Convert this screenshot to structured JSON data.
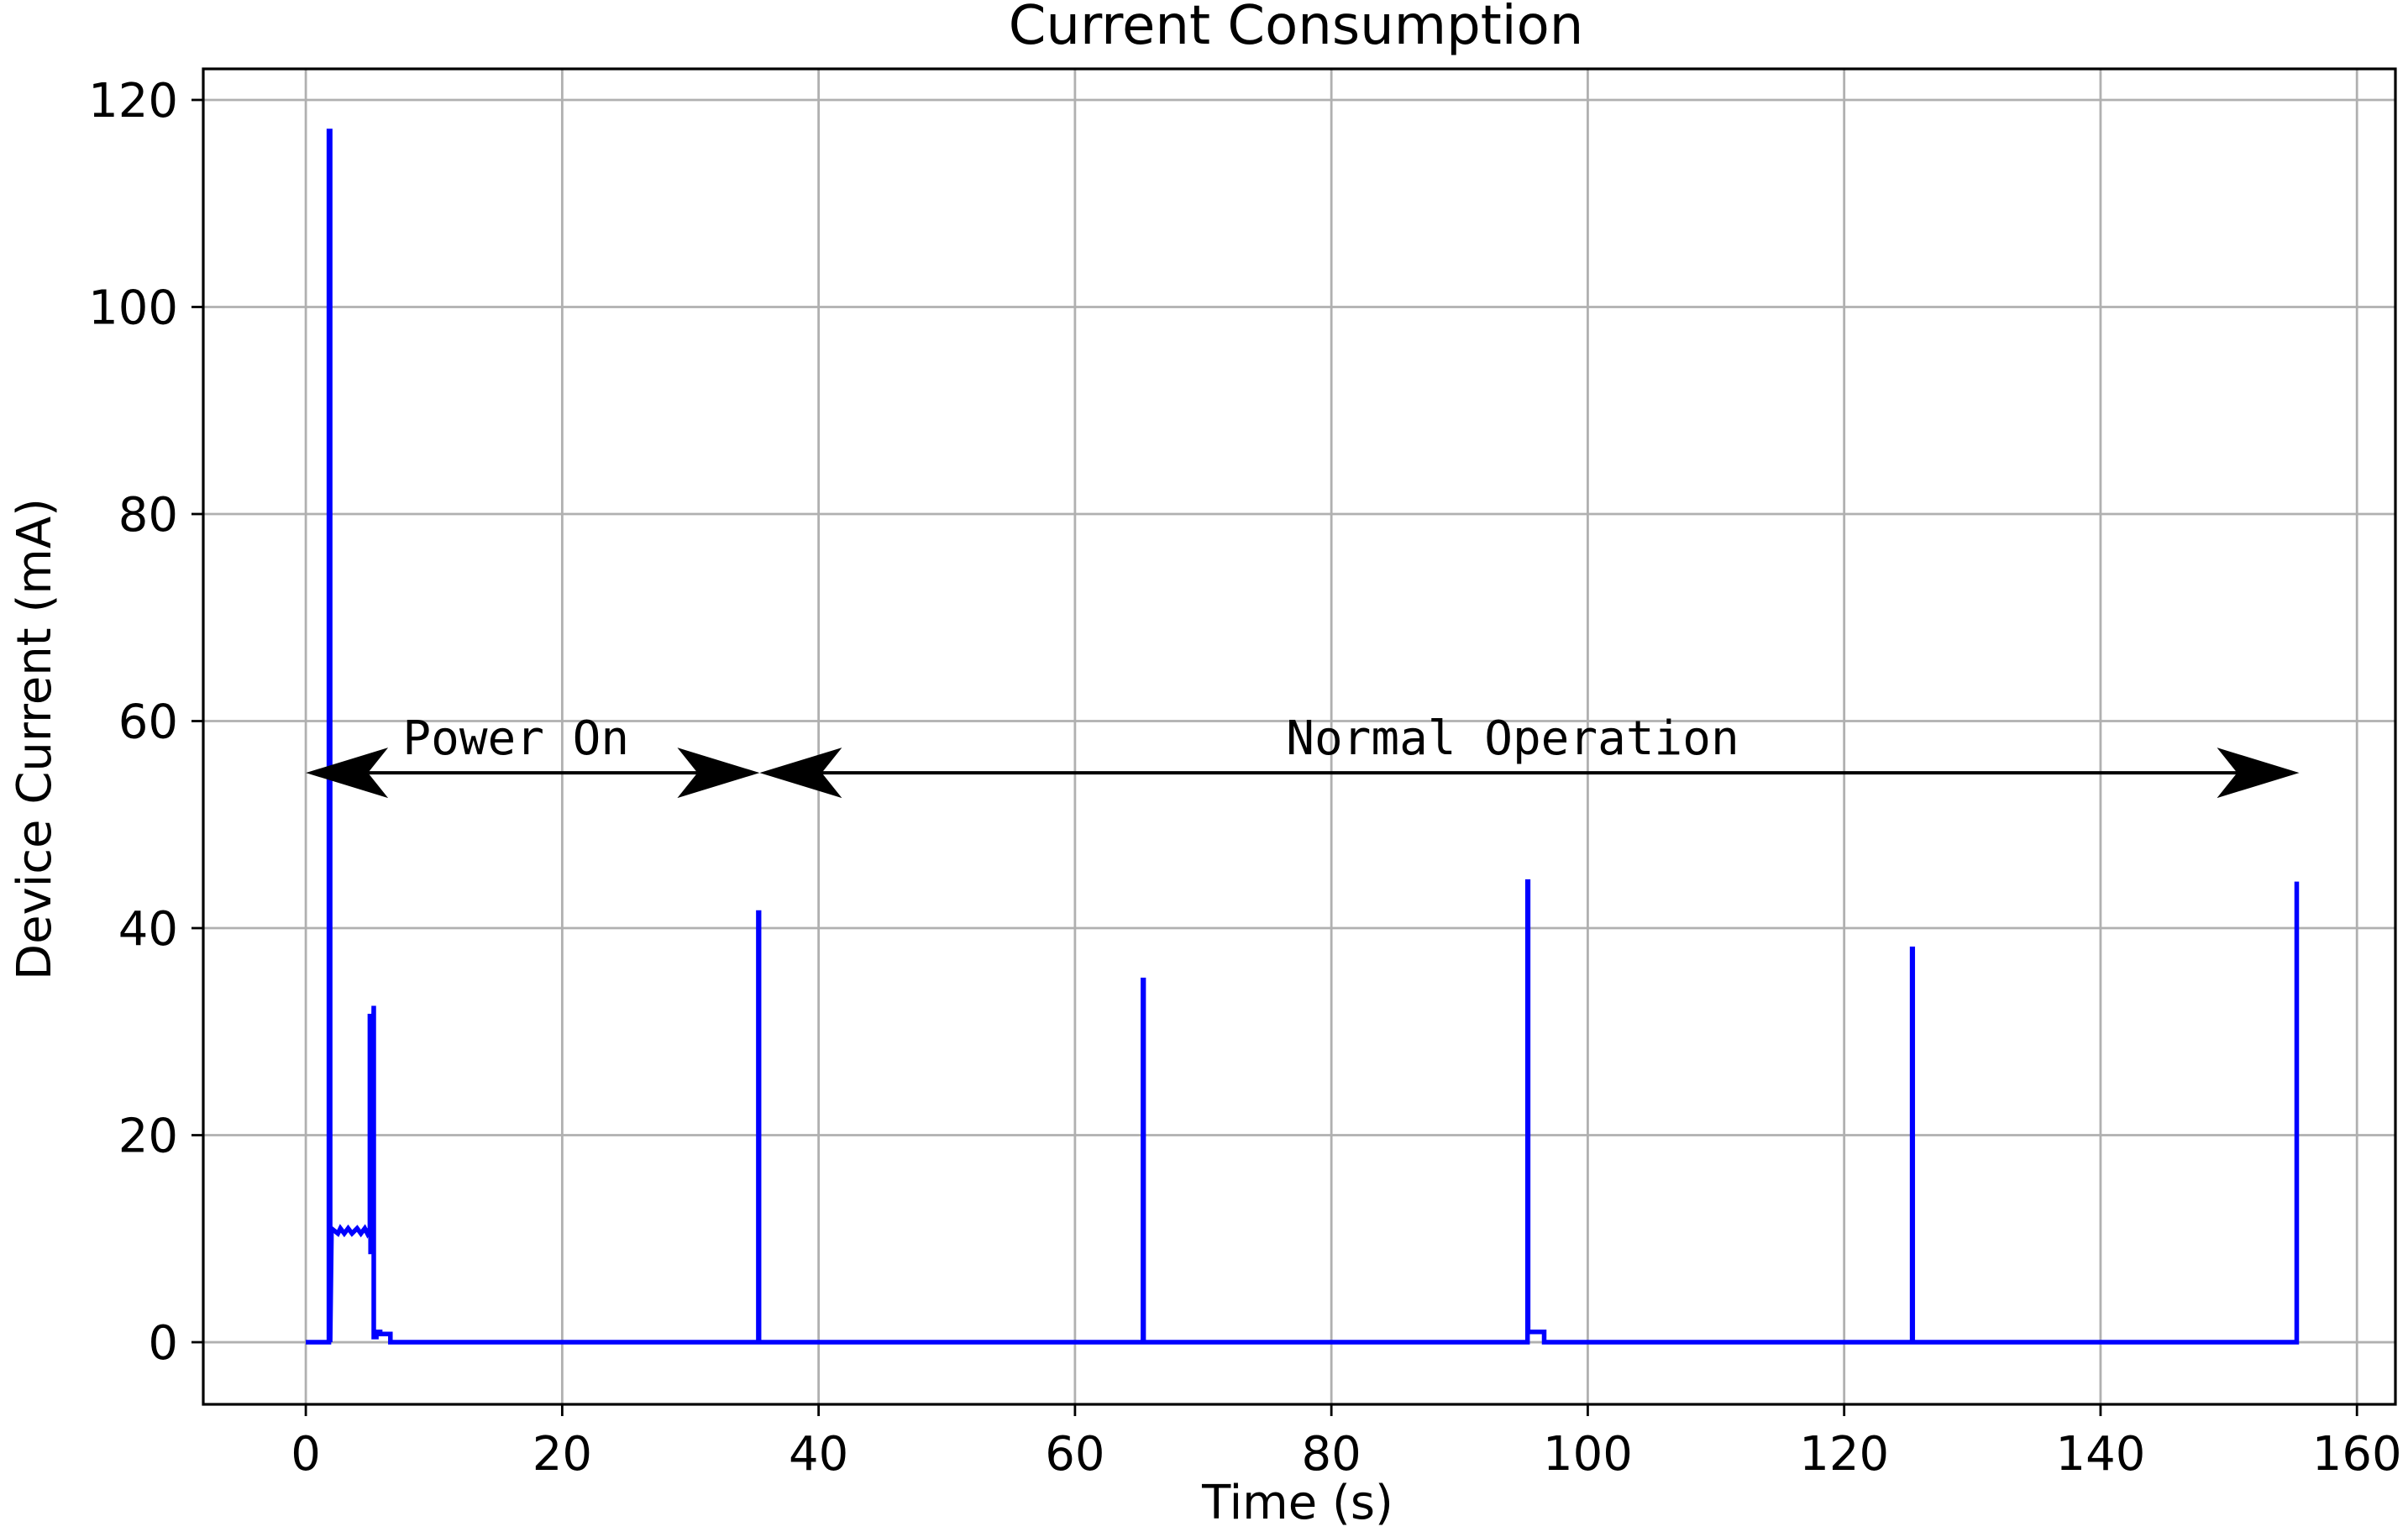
{
  "chart_data": {
    "type": "line",
    "title": "Current Consumption",
    "xlabel": "Time (s)",
    "ylabel": "Device Current  (mA)",
    "xlim": [
      -8,
      163
    ],
    "ylim": [
      -6,
      123
    ],
    "xticks": [
      0,
      20,
      40,
      60,
      80,
      100,
      120,
      140,
      160
    ],
    "yticks": [
      0,
      20,
      40,
      60,
      80,
      100,
      120
    ],
    "grid": true,
    "line_color": "#0000ff",
    "series": [
      {
        "x": [
          0,
          1.8,
          1.8,
          1.9,
          1.9,
          2.0,
          2.0,
          2.5,
          2.7,
          3.0,
          3.3,
          3.6,
          4.0,
          4.3,
          4.6,
          4.8,
          5.0,
          5.0,
          5.05,
          5.05,
          5.3,
          5.3,
          5.5,
          5.5,
          5.8,
          5.8,
          6.6,
          6.6,
          35.3,
          35.3,
          35.35,
          35.35,
          65.3,
          65.3,
          65.35,
          65.35,
          95.3,
          95.3,
          95.35,
          95.35,
          96.6,
          96.6,
          125.3,
          125.3,
          125.35,
          125.35,
          155.3,
          155.3
        ],
        "y": [
          0,
          0,
          117,
          117,
          0,
          10,
          11,
          10.5,
          11,
          10.5,
          11,
          10.5,
          11,
          10.5,
          11,
          10.5,
          11,
          31.5,
          31.5,
          8.5,
          32.5,
          0.5,
          0.5,
          1,
          1,
          0.8,
          0.8,
          0,
          0,
          41.5,
          41.5,
          0,
          0,
          35,
          35,
          0,
          0,
          44.5,
          44.5,
          1,
          1,
          0,
          0,
          38,
          38,
          0,
          0,
          44.5
        ]
      }
    ],
    "annotations": [
      {
        "text": "Power On",
        "x_start": 0,
        "x_end": 35.4,
        "y": 55
      },
      {
        "text": "Normal Operation",
        "x_start": 35.4,
        "x_end": 155.5,
        "y": 55
      }
    ]
  }
}
